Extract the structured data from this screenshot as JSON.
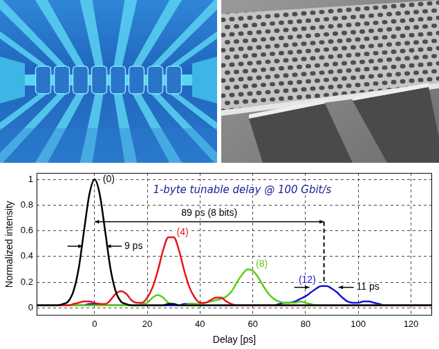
{
  "chart_data": {
    "type": "line",
    "title": "1-byte tunable delay @ 100 Gbit/s",
    "x_label": "Delay [ps]",
    "y_label": "Normalized intensity",
    "x": [
      -22,
      -20,
      -18,
      -16,
      -14,
      -12,
      -10,
      -8,
      -6,
      -4,
      -2,
      0,
      2,
      4,
      6,
      8,
      10,
      12,
      14,
      16,
      18,
      20,
      22,
      24,
      26,
      28,
      30,
      32,
      34,
      36,
      38,
      40,
      42,
      44,
      46,
      48,
      50,
      52,
      54,
      56,
      58,
      60,
      62,
      64,
      66,
      68,
      70,
      72,
      74,
      76,
      78,
      80,
      82,
      84,
      86,
      88,
      90,
      92,
      94,
      96,
      98,
      100,
      102,
      104,
      106,
      108,
      110,
      112,
      114,
      116,
      118,
      120,
      122,
      124,
      126,
      128
    ],
    "series": [
      {
        "name": "(0)",
        "color": "#000000",
        "values": [
          0.02,
          0.02,
          0.02,
          0.02,
          0.02,
          0.03,
          0.05,
          0.13,
          0.31,
          0.6,
          0.88,
          1,
          0.88,
          0.6,
          0.31,
          0.13,
          0.05,
          0.03,
          0.02,
          0.02,
          0.02,
          0.02,
          0.02,
          0.02,
          0.02,
          0.03,
          0.03,
          0.02,
          0.02,
          0.02,
          0.02,
          0.02,
          0.02,
          0.02,
          0.02,
          0.02,
          0.02,
          0.02,
          0.02,
          0.02,
          0.02,
          0.02,
          0.02,
          0.02,
          0.02,
          0.02,
          0.02,
          0.02,
          0.02,
          0.02,
          0.02,
          0.02,
          0.02,
          0.02,
          0.02,
          0.02,
          0.02,
          0.02,
          0.02,
          0.02,
          0.02,
          0.02,
          0.02,
          0.02,
          0.02,
          0.02,
          0.02,
          0.02,
          0.02,
          0.02,
          0.02,
          0.02,
          0.02,
          0.02,
          0.02,
          0.02
        ]
      },
      {
        "name": "(4)",
        "color": "#e8141c",
        "values": [
          0.02,
          0.02,
          0.02,
          0.02,
          0.02,
          0.02,
          0.02,
          0.03,
          0.04,
          0.05,
          0.05,
          0.04,
          0.03,
          0.03,
          0.06,
          0.11,
          0.13,
          0.11,
          0.06,
          0.04,
          0.04,
          0.08,
          0.16,
          0.29,
          0.45,
          0.55,
          0.55,
          0.45,
          0.29,
          0.16,
          0.08,
          0.04,
          0.04,
          0.06,
          0.08,
          0.08,
          0.05,
          0.03,
          0.02,
          0.02,
          0.02,
          0.02,
          0.02,
          0.02,
          0.02,
          0.02,
          0.02,
          0.02,
          0.02,
          0.02,
          0.02,
          0.02,
          0.02,
          0.02,
          0.02,
          0.02,
          0.02,
          0.02,
          0.02,
          0.02,
          0.02,
          0.02,
          0.02,
          0.02,
          0.02,
          0.02,
          0.02,
          0.02,
          0.02,
          0.02,
          0.02,
          0.02,
          0.02,
          0.02,
          0.02,
          0.02
        ]
      },
      {
        "name": "(8)",
        "color": "#5ccc14",
        "values": [
          0.02,
          0.02,
          0.02,
          0.02,
          0.02,
          0.02,
          0.02,
          0.02,
          0.02,
          0.02,
          0.02,
          0.02,
          0.02,
          0.02,
          0.02,
          0.02,
          0.02,
          0.02,
          0.02,
          0.02,
          0.03,
          0.04,
          0.08,
          0.1,
          0.08,
          0.04,
          0.03,
          0.02,
          0.02,
          0.03,
          0.03,
          0.03,
          0.04,
          0.05,
          0.06,
          0.07,
          0.09,
          0.13,
          0.2,
          0.26,
          0.3,
          0.29,
          0.24,
          0.17,
          0.11,
          0.07,
          0.05,
          0.04,
          0.04,
          0.04,
          0.05,
          0.04,
          0.03,
          0.02,
          0.02,
          0.02,
          0.02,
          0.02,
          0.02,
          0.02,
          0.02,
          0.02,
          0.02,
          0.02,
          0.02,
          0.02,
          0.02,
          0.02,
          0.02,
          0.02,
          0.02,
          0.02,
          0.02,
          0.02,
          0.02,
          0.02
        ]
      },
      {
        "name": "(12)",
        "color": "#1414d2",
        "values": [
          0.02,
          0.02,
          0.02,
          0.02,
          0.02,
          0.02,
          0.02,
          0.02,
          0.02,
          0.02,
          0.03,
          0.03,
          0.03,
          0.02,
          0.02,
          0.02,
          0.02,
          0.02,
          0.02,
          0.02,
          0.02,
          0.02,
          0.02,
          0.02,
          0.02,
          0.02,
          0.02,
          0.02,
          0.03,
          0.03,
          0.03,
          0.02,
          0.02,
          0.02,
          0.02,
          0.02,
          0.02,
          0.02,
          0.02,
          0.02,
          0.02,
          0.02,
          0.02,
          0.02,
          0.02,
          0.02,
          0.03,
          0.04,
          0.04,
          0.05,
          0.07,
          0.09,
          0.12,
          0.15,
          0.17,
          0.17,
          0.15,
          0.12,
          0.08,
          0.05,
          0.04,
          0.04,
          0.05,
          0.05,
          0.04,
          0.03,
          0.02,
          0.02,
          0.02,
          0.02,
          0.02,
          0.02,
          0.02,
          0.02,
          0.02,
          0.02
        ]
      }
    ],
    "xlim": [
      -22,
      128
    ],
    "xticks": [
      0,
      20,
      40,
      60,
      80,
      100,
      120
    ],
    "ylim": [
      -0.06,
      1.05
    ],
    "yticks": [
      0,
      0.2,
      0.4,
      0.6,
      0.8,
      1
    ],
    "grid": true,
    "annotations": [
      {
        "text": "9 ps",
        "from": -4.5,
        "to": 4.5,
        "y": 0.48
      },
      {
        "text": "89 ps (8 bits)",
        "from": 0,
        "to": 87,
        "y": 0.67
      },
      {
        "text": "11 ps",
        "from": 81.5,
        "to": 92.5,
        "y": 0.16
      }
    ]
  }
}
